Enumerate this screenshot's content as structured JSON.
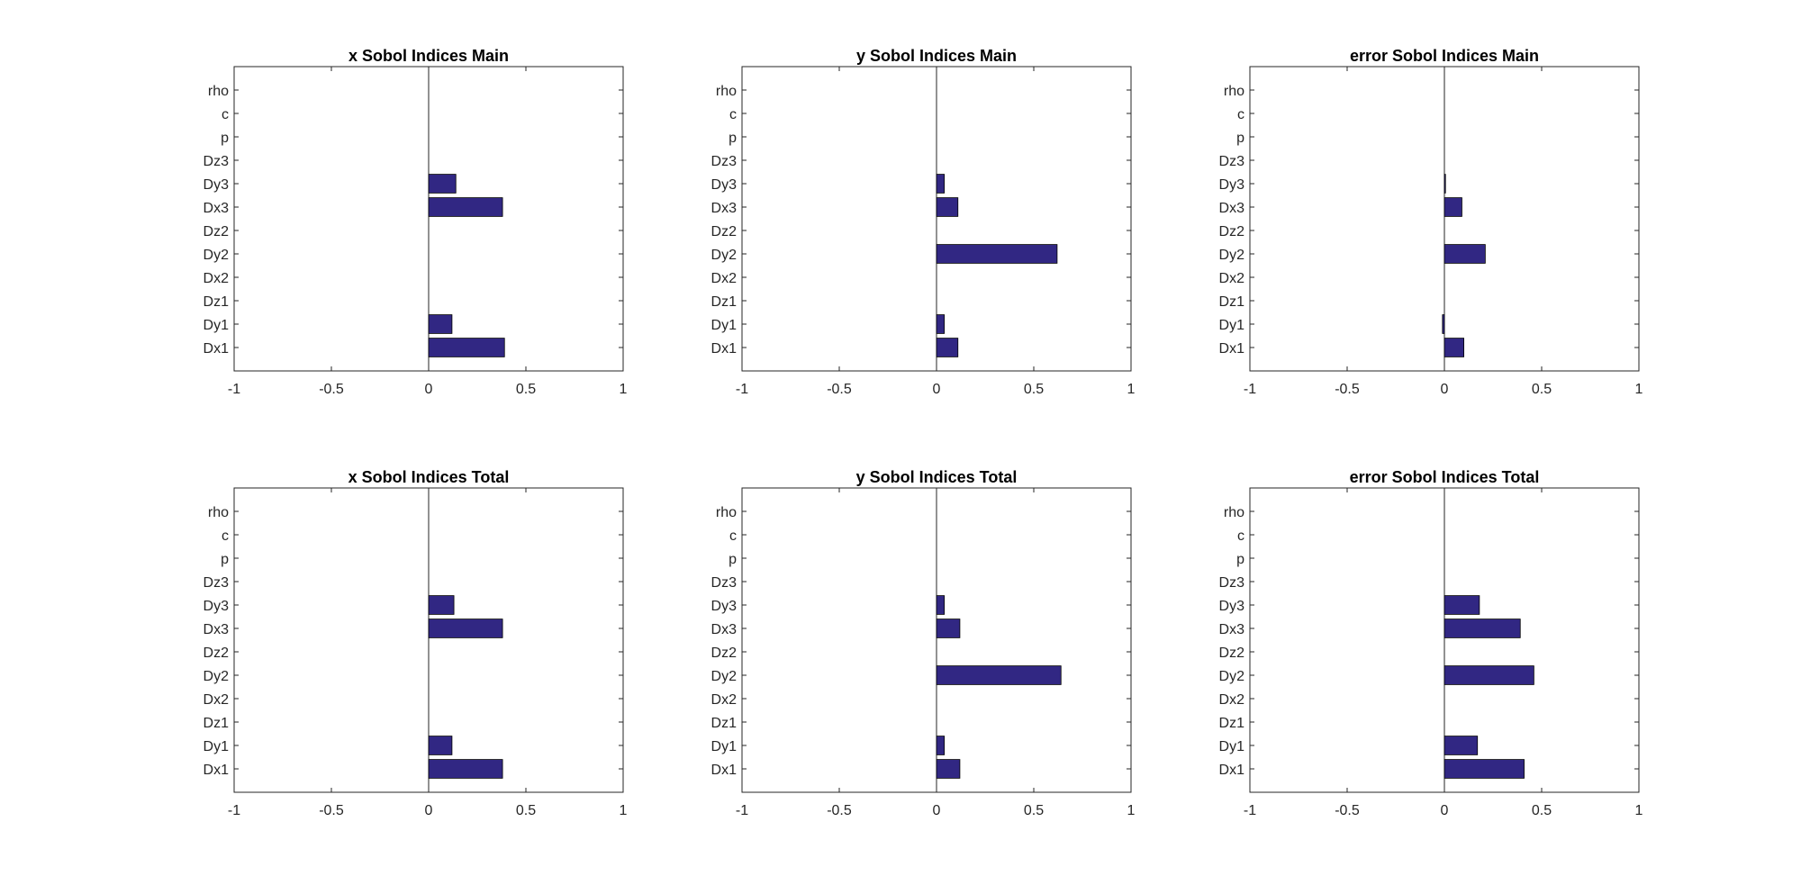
{
  "figure": {
    "bar_color": "#312783",
    "axis_color": "#262626",
    "background": "#ffffff"
  },
  "chart_data": [
    {
      "type": "bar",
      "orientation": "horizontal",
      "title": "x Sobol Indices Main",
      "categories": [
        "Dx1",
        "Dy1",
        "Dz1",
        "Dx2",
        "Dy2",
        "Dz2",
        "Dx3",
        "Dy3",
        "Dz3",
        "p",
        "c",
        "rho"
      ],
      "values": [
        0.39,
        0.12,
        0.0,
        0.0,
        0.0,
        0.0,
        0.38,
        0.14,
        0.0,
        0.0,
        0.0,
        0.0
      ],
      "xlim": [
        -1,
        1
      ],
      "xticks": [
        "-1",
        "-0.5",
        "0",
        "0.5",
        "1"
      ],
      "grid": false
    },
    {
      "type": "bar",
      "orientation": "horizontal",
      "title": "y Sobol Indices Main",
      "categories": [
        "Dx1",
        "Dy1",
        "Dz1",
        "Dx2",
        "Dy2",
        "Dz2",
        "Dx3",
        "Dy3",
        "Dz3",
        "p",
        "c",
        "rho"
      ],
      "values": [
        0.11,
        0.04,
        0.0,
        0.0,
        0.62,
        0.0,
        0.11,
        0.04,
        0.0,
        0.0,
        0.0,
        0.0
      ],
      "xlim": [
        -1,
        1
      ],
      "xticks": [
        "-1",
        "-0.5",
        "0",
        "0.5",
        "1"
      ],
      "grid": false
    },
    {
      "type": "bar",
      "orientation": "horizontal",
      "title": "error Sobol Indices Main",
      "categories": [
        "Dx1",
        "Dy1",
        "Dz1",
        "Dx2",
        "Dy2",
        "Dz2",
        "Dx3",
        "Dy3",
        "Dz3",
        "p",
        "c",
        "rho"
      ],
      "values": [
        0.1,
        -0.01,
        0.0,
        0.0,
        0.21,
        0.0,
        0.09,
        0.003,
        0.0,
        0.0,
        0.0,
        0.0
      ],
      "xlim": [
        -1,
        1
      ],
      "xticks": [
        "-1",
        "-0.5",
        "0",
        "0.5",
        "1"
      ],
      "grid": false
    },
    {
      "type": "bar",
      "orientation": "horizontal",
      "title": "x Sobol Indices Total",
      "categories": [
        "Dx1",
        "Dy1",
        "Dz1",
        "Dx2",
        "Dy2",
        "Dz2",
        "Dx3",
        "Dy3",
        "Dz3",
        "p",
        "c",
        "rho"
      ],
      "values": [
        0.38,
        0.12,
        0.0,
        0.0,
        0.0,
        0.0,
        0.38,
        0.13,
        0.0,
        0.0,
        0.0,
        0.0
      ],
      "xlim": [
        -1,
        1
      ],
      "xticks": [
        "-1",
        "-0.5",
        "0",
        "0.5",
        "1"
      ],
      "grid": false
    },
    {
      "type": "bar",
      "orientation": "horizontal",
      "title": "y Sobol Indices Total",
      "categories": [
        "Dx1",
        "Dy1",
        "Dz1",
        "Dx2",
        "Dy2",
        "Dz2",
        "Dx3",
        "Dy3",
        "Dz3",
        "p",
        "c",
        "rho"
      ],
      "values": [
        0.12,
        0.04,
        0.0,
        0.0,
        0.64,
        0.0,
        0.12,
        0.04,
        0.0,
        0.0,
        0.0,
        0.0
      ],
      "xlim": [
        -1,
        1
      ],
      "xticks": [
        "-1",
        "-0.5",
        "0",
        "0.5",
        "1"
      ],
      "grid": false
    },
    {
      "type": "bar",
      "orientation": "horizontal",
      "title": "error Sobol Indices Total",
      "categories": [
        "Dx1",
        "Dy1",
        "Dz1",
        "Dx2",
        "Dy2",
        "Dz2",
        "Dx3",
        "Dy3",
        "Dz3",
        "p",
        "c",
        "rho"
      ],
      "values": [
        0.41,
        0.17,
        0.0,
        0.0,
        0.46,
        0.0,
        0.39,
        0.18,
        0.0,
        0.0,
        0.0,
        0.0
      ],
      "xlim": [
        -1,
        1
      ],
      "xticks": [
        "-1",
        "-0.5",
        "0",
        "0.5",
        "1"
      ],
      "grid": false
    }
  ]
}
